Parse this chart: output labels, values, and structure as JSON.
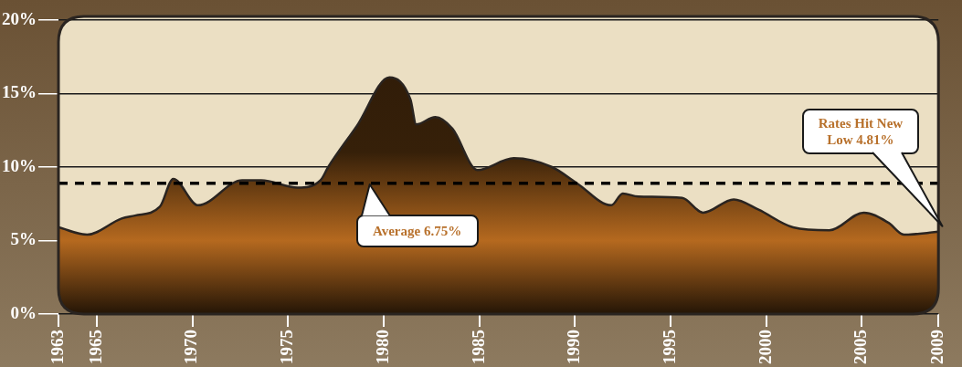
{
  "chart_data": {
    "type": "area",
    "x": [
      1963,
      1964.5,
      1966.3,
      1967,
      1968.3,
      1969,
      1970.3,
      1972.6,
      1973.6,
      1975.5,
      1976.7,
      1977.1,
      1978.6,
      1980.3,
      1981.4,
      1981.7,
      1982.7,
      1983.6,
      1984.9,
      1986.8,
      1988.8,
      1990.1,
      1991.9,
      1992.5,
      1993.3,
      1995.6,
      1996.7,
      1998.3,
      1999.6,
      2001.4,
      2003.3,
      2005.1,
      2006.4,
      2007.2,
      2009
    ],
    "series": [
      {
        "color": "#b5691f",
        "values": [
          5.9,
          5.4,
          6.5,
          6.7,
          7.3,
          9.2,
          7.4,
          9.1,
          9.1,
          8.6,
          9.1,
          10.0,
          12.8,
          16.1,
          14.6,
          12.9,
          13.4,
          12.6,
          9.8,
          10.6,
          10.0,
          8.9,
          7.4,
          8.2,
          8.0,
          7.9,
          6.9,
          7.8,
          7.1,
          5.9,
          5.7,
          6.9,
          6.2,
          5.4,
          5.6
        ]
      }
    ],
    "xlim": [
      1963,
      2009
    ],
    "xticks": [
      1963,
      1965,
      1970,
      1975,
      1980,
      1985,
      1990,
      1995,
      2000,
      2005,
      2009
    ],
    "ylim": [
      0,
      20
    ],
    "yticks": [
      {
        "value": 0,
        "label": "0%"
      },
      {
        "value": 5,
        "label": "5%"
      },
      {
        "value": 10,
        "label": "10%"
      },
      {
        "value": 15,
        "label": "15%"
      },
      {
        "value": 20,
        "label": "20%"
      }
    ],
    "grid": "y",
    "legend": false,
    "ref_lines": [
      {
        "axis": "y",
        "value": 8.9,
        "color": "#000000",
        "line_style": "dashed"
      }
    ],
    "annotations": [
      "Average 6.75%",
      "Rates Hit New Low 4.81%"
    ]
  }
}
